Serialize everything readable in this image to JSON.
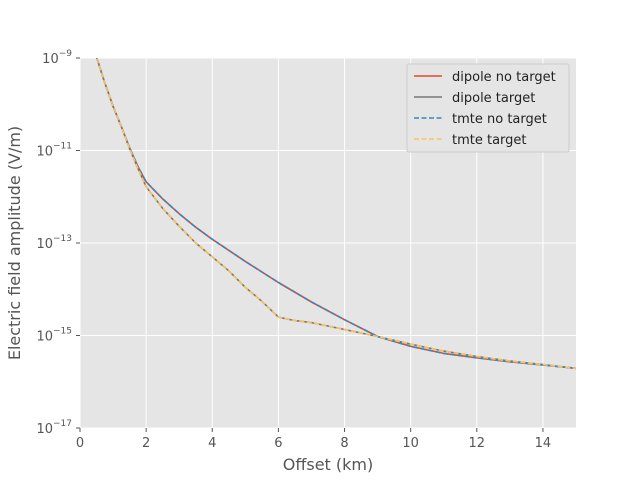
{
  "chart_data": {
    "type": "line",
    "title": "",
    "xlabel": "Offset (km)",
    "ylabel": "Electric field amplitude (V/m)",
    "xlim": [
      0,
      15
    ],
    "ylim": [
      1e-17,
      1e-09
    ],
    "yscale": "log",
    "grid": true,
    "legend_position": "top-right",
    "x_ticks": [
      "0",
      "2",
      "4",
      "6",
      "8",
      "10",
      "12",
      "14"
    ],
    "y_ticks": [
      {
        "base": "10",
        "exp": "−17"
      },
      {
        "base": "10",
        "exp": "−15"
      },
      {
        "base": "10",
        "exp": "−13"
      },
      {
        "base": "10",
        "exp": "−11"
      },
      {
        "base": "10",
        "exp": "−9"
      }
    ],
    "series": [
      {
        "name": "dipole no target",
        "color": "#e24a33",
        "dash": "solid",
        "x": [
          0.25,
          0.5,
          0.75,
          1,
          1.25,
          1.5,
          1.75,
          2,
          2.5,
          3,
          3.5,
          4,
          5,
          6,
          7,
          8,
          9,
          10,
          11,
          12,
          13,
          14,
          15
        ],
        "y": [
          6e-09,
          1.05e-09,
          2.9e-10,
          9e-11,
          3.3e-11,
          1.15e-11,
          4.5e-12,
          2.1e-12,
          9e-13,
          4.3e-13,
          2.2e-13,
          1.2e-13,
          4e-14,
          1.4e-14,
          5.3e-15,
          2.2e-15,
          9.5e-16,
          5.8e-16,
          4.1e-16,
          3.3e-16,
          2.7e-16,
          2.3e-16,
          1.95e-16
        ]
      },
      {
        "name": "dipole target",
        "color": "#777777",
        "dash": "solid",
        "x": [
          0.25,
          0.5,
          0.75,
          1,
          1.25,
          1.5,
          1.75,
          2,
          2.5,
          3,
          3.5,
          4,
          4.5,
          5,
          5.5,
          6,
          6.5,
          7,
          8,
          9,
          10,
          11,
          12,
          13,
          14,
          15
        ],
        "y": [
          6e-09,
          1.05e-09,
          2.9e-10,
          9e-11,
          3.3e-11,
          1.1e-11,
          4.1e-12,
          1.65e-12,
          5.6e-13,
          2.3e-13,
          1e-13,
          5e-14,
          2.5e-14,
          1.1e-14,
          5.5e-15,
          2.5e-15,
          2.1e-15,
          1.9e-15,
          1.35e-15,
          9.5e-16,
          6.5e-16,
          4.6e-16,
          3.5e-16,
          2.8e-16,
          2.35e-16,
          1.95e-16
        ]
      },
      {
        "name": "tmte no target",
        "color": "#348abd",
        "dash": "dashed",
        "x": [
          0.25,
          0.5,
          0.75,
          1,
          1.25,
          1.5,
          1.75,
          2,
          2.5,
          3,
          3.5,
          4,
          5,
          6,
          7,
          8,
          9,
          10,
          11,
          12,
          13,
          14,
          15
        ],
        "y": [
          6e-09,
          1.05e-09,
          2.9e-10,
          9e-11,
          3.3e-11,
          1.15e-11,
          4.5e-12,
          2.1e-12,
          9e-13,
          4.3e-13,
          2.2e-13,
          1.2e-13,
          4e-14,
          1.4e-14,
          5.3e-15,
          2.2e-15,
          9.5e-16,
          5.8e-16,
          4.1e-16,
          3.3e-16,
          2.7e-16,
          2.3e-16,
          1.95e-16
        ]
      },
      {
        "name": "tmte target",
        "color": "#fbc15e",
        "dash": "dashed",
        "x": [
          0.25,
          0.5,
          0.75,
          1,
          1.25,
          1.5,
          1.75,
          2,
          2.5,
          3,
          3.5,
          4,
          4.5,
          5,
          5.5,
          6,
          6.5,
          7,
          8,
          9,
          10,
          11,
          12,
          13,
          14,
          15
        ],
        "y": [
          6e-09,
          1.05e-09,
          2.9e-10,
          9e-11,
          3.3e-11,
          1.1e-11,
          4.1e-12,
          1.65e-12,
          5.6e-13,
          2.3e-13,
          1e-13,
          5e-14,
          2.5e-14,
          1.1e-14,
          5.5e-15,
          2.5e-15,
          2.1e-15,
          1.9e-15,
          1.35e-15,
          9.5e-16,
          6.5e-16,
          4.6e-16,
          3.5e-16,
          2.8e-16,
          2.35e-16,
          1.95e-16
        ]
      }
    ]
  }
}
